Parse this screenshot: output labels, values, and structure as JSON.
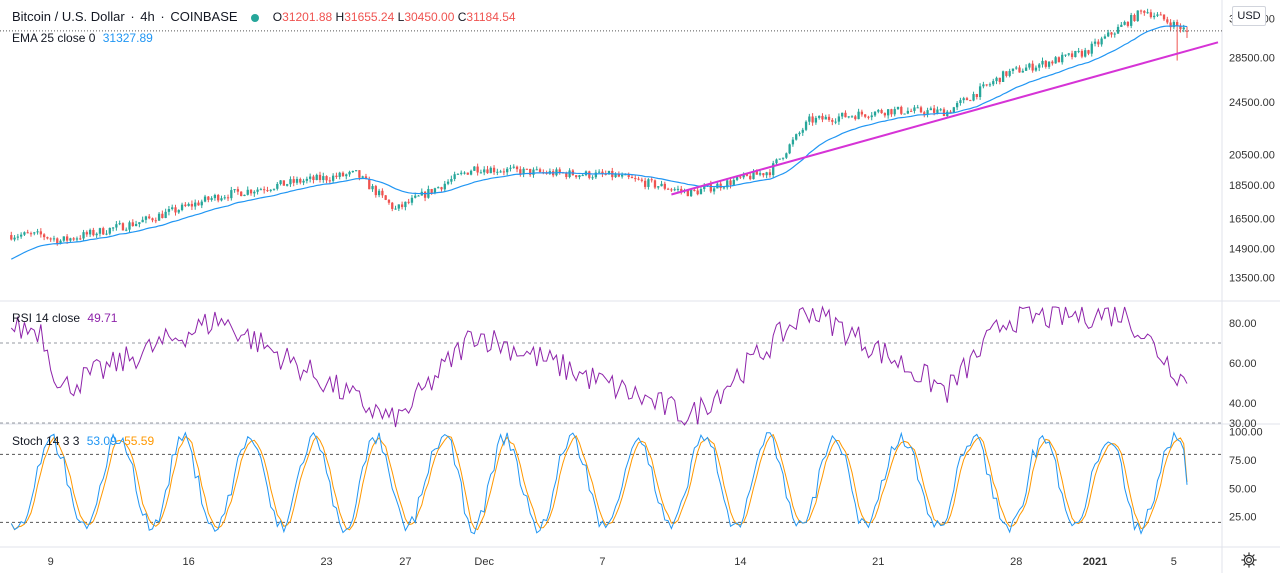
{
  "header": {
    "symbol": "Bitcoin / U.S. Dollar",
    "interval": "4h",
    "exchange": "COINBASE",
    "open_label": "O",
    "open": "31201.88",
    "high_label": "H",
    "high": "31655.24",
    "low_label": "L",
    "low": "30450.00",
    "close_label": "C",
    "close": "31184.54"
  },
  "ema": {
    "label": "EMA 25 close 0",
    "value": "31327.89"
  },
  "rsi": {
    "label": "RSI 14 close",
    "value": "49.71"
  },
  "stoch": {
    "label": "Stoch 14 3 3",
    "k_value": "53.09",
    "d_value": "55.59"
  },
  "currency_button": "USD",
  "colors": {
    "up": "#26a69a",
    "down": "#ef5350",
    "ema": "#2196f3",
    "trendline": "#d633d6",
    "rsi": "#8e24aa",
    "stoch_k": "#2196f3",
    "stoch_d": "#ff9800",
    "text": "#131722",
    "axis_text": "#333333"
  },
  "icons": {
    "settings": "gear-icon",
    "status": "status-dot-icon"
  },
  "chart_data": [
    {
      "type": "candlestick",
      "title": "Bitcoin / U.S. Dollar · 4h · COINBASE",
      "scale": "log",
      "ylim": [
        12600,
        34400
      ],
      "y_ticks": [
        "13500.00",
        "14900.00",
        "16500.00",
        "18500.00",
        "20500.00",
        "24500.00",
        "28500.00",
        "32500.00"
      ],
      "x_ticks": [
        "9",
        "16",
        "23",
        "27",
        "Dec",
        "7",
        "14",
        "21",
        "28",
        "2021",
        "5"
      ],
      "current_price_line": 31184.54,
      "key_points": [
        {
          "x": "Nov 8",
          "close": 15600
        },
        {
          "x": "Nov 9",
          "close": 15300
        },
        {
          "x": "Nov 13",
          "close": 16300
        },
        {
          "x": "Nov 17",
          "close": 17800
        },
        {
          "x": "Nov 21",
          "close": 18700
        },
        {
          "x": "Nov 24",
          "close": 19200
        },
        {
          "x": "Nov 26",
          "close": 17000
        },
        {
          "x": "Nov 30",
          "close": 19600
        },
        {
          "x": "Dec 3",
          "close": 19300
        },
        {
          "x": "Dec 7",
          "close": 19100
        },
        {
          "x": "Dec 11",
          "close": 18000
        },
        {
          "x": "Dec 15",
          "close": 19400
        },
        {
          "x": "Dec 17",
          "close": 23000
        },
        {
          "x": "Dec 21",
          "close": 23800
        },
        {
          "x": "Dec 24",
          "close": 23700
        },
        {
          "x": "Dec 27",
          "close": 27000
        },
        {
          "x": "Dec 31",
          "close": 29000
        },
        {
          "x": "Jan 3",
          "close": 33500
        },
        {
          "x": "Jan 5",
          "close": 31184.54
        }
      ],
      "series": [
        {
          "name": "EMA 25 close 0",
          "last": 31327.89
        },
        {
          "name": "Trendline",
          "from": {
            "x": "Dec 10",
            "y": 17900
          },
          "to": {
            "x": "Jan 6",
            "y": 30000
          }
        }
      ]
    },
    {
      "type": "line",
      "title": "RSI 14 close",
      "ylim": [
        30,
        90
      ],
      "y_ticks": [
        "30.00",
        "40.00",
        "60.00",
        "80.00"
      ],
      "bands": [
        30,
        70
      ],
      "series": [
        {
          "name": "RSI 14 close",
          "last": 49.71,
          "key_points": [
            {
              "x": "Nov 8",
              "y": 77
            },
            {
              "x": "Nov 9",
              "y": 47
            },
            {
              "x": "Nov 17",
              "y": 82
            },
            {
              "x": "Nov 26",
              "y": 30
            },
            {
              "x": "Nov 30",
              "y": 75
            },
            {
              "x": "Dec 11",
              "y": 33
            },
            {
              "x": "Dec 17",
              "y": 87
            },
            {
              "x": "Dec 24",
              "y": 46
            },
            {
              "x": "Dec 27",
              "y": 82
            },
            {
              "x": "Jan 2",
              "y": 85
            },
            {
              "x": "Jan 5",
              "y": 49.71
            }
          ]
        }
      ]
    },
    {
      "type": "line",
      "title": "Stoch 14 3 3",
      "ylim": [
        0,
        105
      ],
      "y_ticks": [
        "25.00",
        "50.00",
        "75.00",
        "100.00"
      ],
      "bands": [
        20,
        80
      ],
      "series": [
        {
          "name": "%K",
          "last": 53.09
        },
        {
          "name": "%D",
          "last": 55.59
        }
      ]
    }
  ]
}
